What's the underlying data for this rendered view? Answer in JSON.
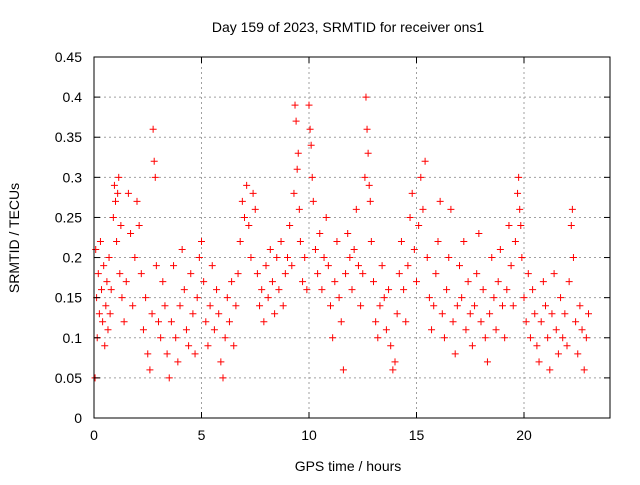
{
  "chart_data": {
    "type": "scatter",
    "title": "Day 159 of 2023, SRMTID for receiver ons1",
    "xlabel": "GPS time / hours",
    "ylabel": "SRMTID / TECUs",
    "xlim": [
      0,
      24
    ],
    "ylim": [
      0,
      0.45
    ],
    "xticks": [
      0,
      5,
      10,
      15,
      20
    ],
    "yticks": [
      0,
      0.05,
      0.1,
      0.15,
      0.2,
      0.25,
      0.3,
      0.35,
      0.4,
      0.45
    ],
    "xtick_labels": [
      "0",
      "5",
      "10",
      "15",
      "20"
    ],
    "ytick_labels": [
      "0",
      "0.05",
      "0.1",
      "0.15",
      "0.2",
      "0.25",
      "0.3",
      "0.35",
      "0.4",
      "0.45"
    ],
    "grid": true,
    "marker": "+",
    "color": "#ff0000",
    "series": [
      {
        "name": "SRMTID",
        "points": [
          [
            0.05,
            0.05
          ],
          [
            0.08,
            0.21
          ],
          [
            0.12,
            0.15
          ],
          [
            0.15,
            0.1
          ],
          [
            0.2,
            0.18
          ],
          [
            0.25,
            0.13
          ],
          [
            0.3,
            0.22
          ],
          [
            0.35,
            0.16
          ],
          [
            0.4,
            0.12
          ],
          [
            0.45,
            0.19
          ],
          [
            0.5,
            0.09
          ],
          [
            0.55,
            0.14
          ],
          [
            0.6,
            0.17
          ],
          [
            0.65,
            0.11
          ],
          [
            0.7,
            0.2
          ],
          [
            0.75,
            0.13
          ],
          [
            0.8,
            0.16
          ],
          [
            0.9,
            0.25
          ],
          [
            0.95,
            0.29
          ],
          [
            1.0,
            0.27
          ],
          [
            1.05,
            0.22
          ],
          [
            1.1,
            0.28
          ],
          [
            1.15,
            0.3
          ],
          [
            1.2,
            0.18
          ],
          [
            1.25,
            0.24
          ],
          [
            1.3,
            0.15
          ],
          [
            1.4,
            0.12
          ],
          [
            1.5,
            0.17
          ],
          [
            1.6,
            0.28
          ],
          [
            1.7,
            0.23
          ],
          [
            1.8,
            0.14
          ],
          [
            1.9,
            0.2
          ],
          [
            2.0,
            0.27
          ],
          [
            2.1,
            0.24
          ],
          [
            2.2,
            0.18
          ],
          [
            2.3,
            0.11
          ],
          [
            2.4,
            0.15
          ],
          [
            2.5,
            0.08
          ],
          [
            2.6,
            0.06
          ],
          [
            2.7,
            0.13
          ],
          [
            2.75,
            0.36
          ],
          [
            2.8,
            0.32
          ],
          [
            2.85,
            0.3
          ],
          [
            2.9,
            0.19
          ],
          [
            3.0,
            0.12
          ],
          [
            3.1,
            0.1
          ],
          [
            3.2,
            0.17
          ],
          [
            3.3,
            0.14
          ],
          [
            3.4,
            0.08
          ],
          [
            3.5,
            0.05
          ],
          [
            3.6,
            0.12
          ],
          [
            3.7,
            0.19
          ],
          [
            3.8,
            0.1
          ],
          [
            3.9,
            0.07
          ],
          [
            4.0,
            0.14
          ],
          [
            4.1,
            0.21
          ],
          [
            4.2,
            0.16
          ],
          [
            4.3,
            0.11
          ],
          [
            4.4,
            0.09
          ],
          [
            4.5,
            0.18
          ],
          [
            4.6,
            0.13
          ],
          [
            4.7,
            0.08
          ],
          [
            4.8,
            0.15
          ],
          [
            4.9,
            0.2
          ],
          [
            5.0,
            0.22
          ],
          [
            5.1,
            0.17
          ],
          [
            5.2,
            0.12
          ],
          [
            5.3,
            0.09
          ],
          [
            5.4,
            0.14
          ],
          [
            5.5,
            0.19
          ],
          [
            5.6,
            0.11
          ],
          [
            5.7,
            0.16
          ],
          [
            5.8,
            0.13
          ],
          [
            5.9,
            0.07
          ],
          [
            6.0,
            0.05
          ],
          [
            6.1,
            0.1
          ],
          [
            6.2,
            0.15
          ],
          [
            6.3,
            0.12
          ],
          [
            6.4,
            0.17
          ],
          [
            6.5,
            0.09
          ],
          [
            6.6,
            0.14
          ],
          [
            6.7,
            0.18
          ],
          [
            6.8,
            0.22
          ],
          [
            6.9,
            0.27
          ],
          [
            7.0,
            0.25
          ],
          [
            7.1,
            0.29
          ],
          [
            7.2,
            0.24
          ],
          [
            7.3,
            0.2
          ],
          [
            7.4,
            0.28
          ],
          [
            7.5,
            0.26
          ],
          [
            7.6,
            0.18
          ],
          [
            7.7,
            0.14
          ],
          [
            7.8,
            0.16
          ],
          [
            7.9,
            0.12
          ],
          [
            8.0,
            0.19
          ],
          [
            8.1,
            0.15
          ],
          [
            8.2,
            0.21
          ],
          [
            8.3,
            0.17
          ],
          [
            8.4,
            0.13
          ],
          [
            8.5,
            0.2
          ],
          [
            8.6,
            0.16
          ],
          [
            8.7,
            0.22
          ],
          [
            8.8,
            0.14
          ],
          [
            8.9,
            0.18
          ],
          [
            9.0,
            0.2
          ],
          [
            9.1,
            0.24
          ],
          [
            9.2,
            0.19
          ],
          [
            9.3,
            0.28
          ],
          [
            9.35,
            0.39
          ],
          [
            9.4,
            0.37
          ],
          [
            9.45,
            0.31
          ],
          [
            9.5,
            0.33
          ],
          [
            9.55,
            0.26
          ],
          [
            9.6,
            0.22
          ],
          [
            9.7,
            0.17
          ],
          [
            9.8,
            0.2
          ],
          [
            9.9,
            0.16
          ],
          [
            10.0,
            0.39
          ],
          [
            10.05,
            0.36
          ],
          [
            10.1,
            0.34
          ],
          [
            10.15,
            0.3
          ],
          [
            10.2,
            0.27
          ],
          [
            10.3,
            0.21
          ],
          [
            10.4,
            0.18
          ],
          [
            10.5,
            0.23
          ],
          [
            10.6,
            0.16
          ],
          [
            10.7,
            0.2
          ],
          [
            10.8,
            0.25
          ],
          [
            10.9,
            0.19
          ],
          [
            11.0,
            0.14
          ],
          [
            11.1,
            0.1
          ],
          [
            11.2,
            0.17
          ],
          [
            11.3,
            0.22
          ],
          [
            11.4,
            0.15
          ],
          [
            11.5,
            0.12
          ],
          [
            11.6,
            0.06
          ],
          [
            11.7,
            0.18
          ],
          [
            11.8,
            0.23
          ],
          [
            11.9,
            0.2
          ],
          [
            12.0,
            0.16
          ],
          [
            12.1,
            0.21
          ],
          [
            12.2,
            0.26
          ],
          [
            12.3,
            0.19
          ],
          [
            12.4,
            0.14
          ],
          [
            12.5,
            0.18
          ],
          [
            12.6,
            0.3
          ],
          [
            12.65,
            0.4
          ],
          [
            12.7,
            0.36
          ],
          [
            12.75,
            0.33
          ],
          [
            12.8,
            0.29
          ],
          [
            12.85,
            0.27
          ],
          [
            12.9,
            0.22
          ],
          [
            13.0,
            0.17
          ],
          [
            13.1,
            0.12
          ],
          [
            13.2,
            0.1
          ],
          [
            13.3,
            0.14
          ],
          [
            13.4,
            0.19
          ],
          [
            13.5,
            0.15
          ],
          [
            13.6,
            0.11
          ],
          [
            13.7,
            0.16
          ],
          [
            13.8,
            0.09
          ],
          [
            13.9,
            0.06
          ],
          [
            14.0,
            0.07
          ],
          [
            14.1,
            0.13
          ],
          [
            14.2,
            0.18
          ],
          [
            14.3,
            0.22
          ],
          [
            14.4,
            0.16
          ],
          [
            14.5,
            0.12
          ],
          [
            14.6,
            0.19
          ],
          [
            14.7,
            0.25
          ],
          [
            14.8,
            0.28
          ],
          [
            14.9,
            0.21
          ],
          [
            15.0,
            0.17
          ],
          [
            15.1,
            0.24
          ],
          [
            15.2,
            0.3
          ],
          [
            15.3,
            0.26
          ],
          [
            15.4,
            0.32
          ],
          [
            15.5,
            0.2
          ],
          [
            15.6,
            0.15
          ],
          [
            15.7,
            0.11
          ],
          [
            15.8,
            0.14
          ],
          [
            15.9,
            0.18
          ],
          [
            16.0,
            0.22
          ],
          [
            16.1,
            0.27
          ],
          [
            16.2,
            0.13
          ],
          [
            16.3,
            0.1
          ],
          [
            16.4,
            0.16
          ],
          [
            16.5,
            0.2
          ],
          [
            16.6,
            0.26
          ],
          [
            16.7,
            0.12
          ],
          [
            16.8,
            0.08
          ],
          [
            16.9,
            0.14
          ],
          [
            17.0,
            0.19
          ],
          [
            17.1,
            0.15
          ],
          [
            17.2,
            0.22
          ],
          [
            17.3,
            0.11
          ],
          [
            17.4,
            0.17
          ],
          [
            17.5,
            0.13
          ],
          [
            17.6,
            0.09
          ],
          [
            17.7,
            0.14
          ],
          [
            17.8,
            0.18
          ],
          [
            17.9,
            0.23
          ],
          [
            18.0,
            0.12
          ],
          [
            18.1,
            0.16
          ],
          [
            18.2,
            0.1
          ],
          [
            18.3,
            0.07
          ],
          [
            18.4,
            0.13
          ],
          [
            18.5,
            0.2
          ],
          [
            18.6,
            0.15
          ],
          [
            18.7,
            0.11
          ],
          [
            18.8,
            0.17
          ],
          [
            18.9,
            0.21
          ],
          [
            19.0,
            0.14
          ],
          [
            19.1,
            0.1
          ],
          [
            19.2,
            0.16
          ],
          [
            19.3,
            0.24
          ],
          [
            19.4,
            0.19
          ],
          [
            19.5,
            0.14
          ],
          [
            19.6,
            0.22
          ],
          [
            19.7,
            0.28
          ],
          [
            19.75,
            0.3
          ],
          [
            19.8,
            0.26
          ],
          [
            19.85,
            0.24
          ],
          [
            19.9,
            0.2
          ],
          [
            20.0,
            0.15
          ],
          [
            20.1,
            0.12
          ],
          [
            20.2,
            0.18
          ],
          [
            20.3,
            0.1
          ],
          [
            20.4,
            0.16
          ],
          [
            20.5,
            0.13
          ],
          [
            20.6,
            0.09
          ],
          [
            20.7,
            0.07
          ],
          [
            20.8,
            0.12
          ],
          [
            20.9,
            0.17
          ],
          [
            21.0,
            0.14
          ],
          [
            21.1,
            0.1
          ],
          [
            21.2,
            0.06
          ],
          [
            21.3,
            0.13
          ],
          [
            21.4,
            0.18
          ],
          [
            21.5,
            0.11
          ],
          [
            21.6,
            0.08
          ],
          [
            21.7,
            0.15
          ],
          [
            21.8,
            0.1
          ],
          [
            21.9,
            0.13
          ],
          [
            22.0,
            0.09
          ],
          [
            22.1,
            0.17
          ],
          [
            22.2,
            0.24
          ],
          [
            22.25,
            0.26
          ],
          [
            22.3,
            0.2
          ],
          [
            22.4,
            0.12
          ],
          [
            22.5,
            0.08
          ],
          [
            22.6,
            0.14
          ],
          [
            22.7,
            0.11
          ],
          [
            22.8,
            0.06
          ],
          [
            22.9,
            0.1
          ],
          [
            23.0,
            0.13
          ]
        ]
      }
    ]
  }
}
